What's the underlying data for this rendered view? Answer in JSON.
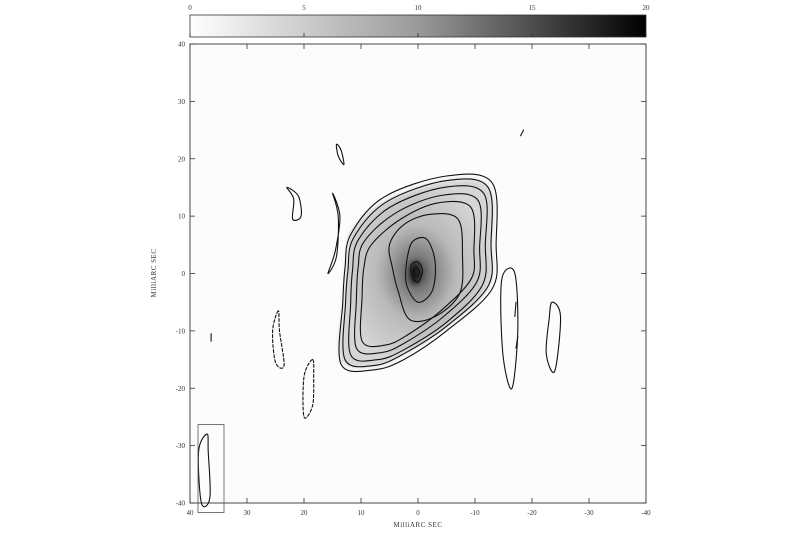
{
  "chart_data": {
    "type": "contour",
    "title": "",
    "xlabel": "MilliARC SEC",
    "ylabel": "MilliARC SEC",
    "xlim": [
      40,
      -40
    ],
    "ylim": [
      -40,
      40
    ],
    "x_ticks": [
      "40",
      "30",
      "20",
      "10",
      "0",
      "-10",
      "-20",
      "-30",
      "-40"
    ],
    "y_ticks": [
      "40",
      "30",
      "20",
      "10",
      "0",
      "-10",
      "-20",
      "-30",
      "-40"
    ],
    "colorbar": {
      "range": [
        0,
        20
      ],
      "ticks": [
        "0",
        "5",
        "10",
        "15",
        "20"
      ],
      "colormap": "white-to-black",
      "orientation": "horizontal",
      "placement": "top"
    },
    "greyscale_peak": {
      "x": 0.5,
      "y": 0.1,
      "value": 20
    },
    "emission_envelope": [
      [
        12.3,
        4.0
      ],
      [
        11.5,
        7.7
      ],
      [
        5.8,
        12.5
      ],
      [
        -5.0,
        16.2
      ],
      [
        -12.5,
        15.0
      ],
      [
        -13.0,
        5.0
      ],
      [
        -12.3,
        -2.5
      ],
      [
        -5.0,
        -9.2
      ],
      [
        2.5,
        -14.0
      ],
      [
        7.8,
        -16.2
      ],
      [
        13.5,
        -15.0
      ],
      [
        13.0,
        -5.0
      ]
    ],
    "contours": [
      {
        "level": 1,
        "style": "solid",
        "points": [
          [
            12.8,
            1.0
          ],
          [
            11.8,
            6.8
          ],
          [
            6.0,
            13.3
          ],
          [
            -5.0,
            17.0
          ],
          [
            -13.0,
            15.8
          ],
          [
            -13.7,
            5.0
          ],
          [
            -13.0,
            -2.7
          ],
          [
            -5.0,
            -10.0
          ],
          [
            2.5,
            -15.0
          ],
          [
            7.8,
            -16.8
          ],
          [
            13.5,
            -15.8
          ],
          [
            13.2,
            -5.0
          ]
        ]
      },
      {
        "level": 2,
        "style": "solid",
        "points": [
          [
            12.3,
            0.5
          ],
          [
            11.3,
            6.2
          ],
          [
            5.5,
            12.5
          ],
          [
            -5.0,
            16.2
          ],
          [
            -12.3,
            15.0
          ],
          [
            -12.8,
            5.0
          ],
          [
            -12.3,
            -2.2
          ],
          [
            -5.0,
            -9.2
          ],
          [
            2.5,
            -14.0
          ],
          [
            7.5,
            -16.0
          ],
          [
            12.8,
            -15.0
          ],
          [
            12.7,
            -5.0
          ]
        ]
      },
      {
        "level": 3,
        "style": "solid",
        "points": [
          [
            11.5,
            0.5
          ],
          [
            10.5,
            5.8
          ],
          [
            5.0,
            11.5
          ],
          [
            -4.5,
            15.0
          ],
          [
            -11.5,
            14.0
          ],
          [
            -11.8,
            5.0
          ],
          [
            -11.3,
            -2.0
          ],
          [
            -5.0,
            -8.5
          ],
          [
            2.5,
            -13.3
          ],
          [
            7.0,
            -15.0
          ],
          [
            11.8,
            -14.2
          ],
          [
            11.8,
            -5.0
          ]
        ]
      },
      {
        "level": 4,
        "style": "solid",
        "points": [
          [
            10.5,
            1.0
          ],
          [
            9.5,
            5.5
          ],
          [
            4.0,
            10.5
          ],
          [
            -4.0,
            13.6
          ],
          [
            -10.5,
            12.8
          ],
          [
            -10.8,
            4.5
          ],
          [
            -10.3,
            -1.5
          ],
          [
            -4.5,
            -7.5
          ],
          [
            2.5,
            -12.2
          ],
          [
            6.5,
            -13.8
          ],
          [
            10.8,
            -13.0
          ],
          [
            10.8,
            -4.5
          ]
        ]
      },
      {
        "level": 5,
        "style": "solid",
        "points": [
          [
            9.5,
            1.0
          ],
          [
            8.2,
            5.0
          ],
          [
            3.0,
            9.5
          ],
          [
            -3.5,
            12.3
          ],
          [
            -9.3,
            11.5
          ],
          [
            -9.8,
            4.0
          ],
          [
            -9.3,
            -1.0
          ],
          [
            -4.0,
            -6.5
          ],
          [
            2.0,
            -10.8
          ],
          [
            5.8,
            -12.5
          ],
          [
            9.8,
            -11.8
          ],
          [
            9.8,
            -4.0
          ]
        ]
      },
      {
        "level": 6,
        "style": "solid",
        "points": [
          [
            5.0,
            5.0
          ],
          [
            2.5,
            8.5
          ],
          [
            -2.0,
            10.3
          ],
          [
            -7.0,
            9.5
          ],
          [
            -7.8,
            3.0
          ],
          [
            -7.3,
            -3.5
          ],
          [
            -3.0,
            -7.5
          ],
          [
            1.5,
            -8.0
          ],
          [
            3.5,
            -3.0
          ],
          [
            4.5,
            1.0
          ]
        ]
      },
      {
        "level": 7,
        "style": "solid",
        "points": [
          [
            2.0,
            2.0
          ],
          [
            1.0,
            5.5
          ],
          [
            -1.5,
            6.0
          ],
          [
            -3.0,
            2.0
          ],
          [
            -2.5,
            -3.0
          ],
          [
            0.0,
            -5.0
          ],
          [
            2.0,
            -2.0
          ]
        ]
      },
      {
        "level": 8,
        "style": "solid",
        "points": [
          [
            1.2,
            1.5
          ],
          [
            0.0,
            2.0
          ],
          [
            -0.8,
            0.5
          ],
          [
            0.0,
            -1.5
          ],
          [
            1.0,
            -0.5
          ]
        ]
      },
      {
        "level": 9,
        "style": "solid",
        "points": [
          [
            0.8,
            0.7
          ],
          [
            0.2,
            1.0
          ],
          [
            -0.3,
            0.2
          ],
          [
            0.2,
            -0.6
          ],
          [
            0.7,
            -0.2
          ]
        ]
      },
      {
        "level": 1,
        "style": "solid",
        "points": [
          [
            15.0,
            14.0
          ],
          [
            14.0,
            10.0
          ],
          [
            14.3,
            3.0
          ],
          [
            15.8,
            0.0
          ],
          [
            14.5,
            4.0
          ],
          [
            13.7,
            10.0
          ]
        ]
      },
      {
        "level": 1,
        "style": "solid",
        "points": [
          [
            23.0,
            15.0
          ],
          [
            21.8,
            13.0
          ],
          [
            22.0,
            9.5
          ],
          [
            20.5,
            10.0
          ],
          [
            21.0,
            13.5
          ]
        ]
      },
      {
        "level": 1,
        "style": "solid",
        "points": [
          [
            14.0,
            20.5
          ],
          [
            13.0,
            19.0
          ],
          [
            13.5,
            21.5
          ],
          [
            14.3,
            22.5
          ]
        ]
      },
      {
        "level": 1,
        "style": "solid",
        "points": [
          [
            -15.0,
            0.0
          ],
          [
            -17.0,
            0.0
          ],
          [
            -17.5,
            -10.0
          ],
          [
            -16.5,
            -20.0
          ],
          [
            -15.0,
            -15.0
          ],
          [
            -14.5,
            -5.0
          ]
        ]
      },
      {
        "level": 1,
        "style": "solid",
        "points": [
          [
            -23.5,
            -5.0
          ],
          [
            -25.0,
            -7.5
          ],
          [
            -24.0,
            -17.0
          ],
          [
            -22.5,
            -14.0
          ],
          [
            -23.0,
            -8.0
          ]
        ]
      },
      {
        "level": 1,
        "style": "solid",
        "points": [
          [
            -17.2,
            -5.0
          ],
          [
            -17.0,
            -7.5
          ]
        ]
      },
      {
        "level": 1,
        "style": "solid",
        "points": [
          [
            -17.5,
            -11.0
          ],
          [
            -17.2,
            -13.0
          ]
        ]
      },
      {
        "level": 1,
        "style": "solid",
        "points": [
          [
            -18.0,
            24.0
          ],
          [
            -18.5,
            25.0
          ]
        ]
      },
      {
        "level": 1,
        "style": "dashed",
        "points": [
          [
            24.5,
            -6.5
          ],
          [
            25.5,
            -10.0
          ],
          [
            25.0,
            -15.5
          ],
          [
            23.5,
            -16.0
          ],
          [
            24.3,
            -10.0
          ]
        ]
      },
      {
        "level": 1,
        "style": "dashed",
        "points": [
          [
            18.5,
            -15.0
          ],
          [
            20.0,
            -18.0
          ],
          [
            20.0,
            -25.0
          ],
          [
            18.5,
            -23.0
          ],
          [
            18.3,
            -18.0
          ]
        ]
      },
      {
        "level": 1,
        "style": "solid",
        "points": [
          [
            37.0,
            -28.0
          ],
          [
            38.5,
            -31.0
          ],
          [
            38.0,
            -40.0
          ],
          [
            36.5,
            -39.0
          ],
          [
            36.8,
            -31.0
          ]
        ]
      },
      {
        "level": 1,
        "style": "solid",
        "points": [
          [
            36.3,
            -10.5
          ],
          [
            36.3,
            -11.8
          ]
        ]
      }
    ],
    "beam": {
      "x": 36.8,
      "y": -34.0,
      "major": 7.0,
      "minor": 1.2,
      "position_angle_deg": 10,
      "boxed": true
    },
    "grid": false,
    "legend": "none"
  }
}
